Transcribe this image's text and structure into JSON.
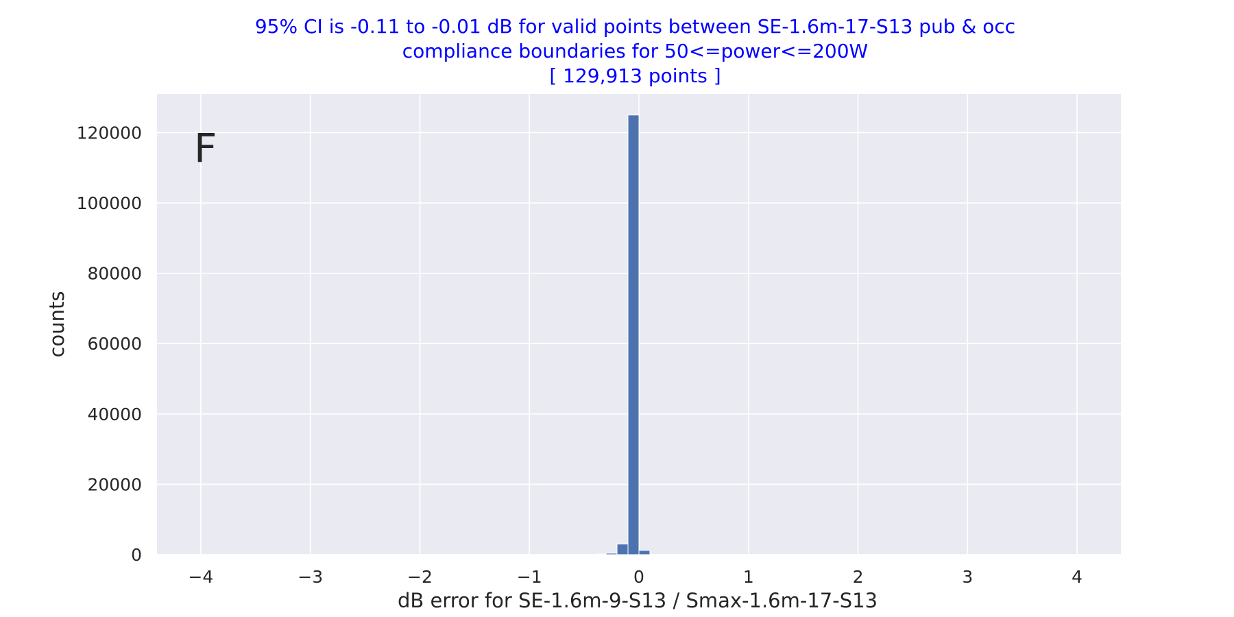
{
  "chart_data": {
    "type": "bar",
    "title_lines": [
      "95% CI is -0.11 to -0.01 dB for valid points between SE-1.6m-17-S13 pub & occ",
      "compliance boundaries for 50<=power<=200W",
      "[ 129,913 points ]"
    ],
    "panel_label": "F",
    "xlabel": "dB error for SE-1.6m-9-S13 / Smax-1.6m-17-S13",
    "ylabel": "counts",
    "xlim": [
      -4.4,
      4.4
    ],
    "ylim": [
      0,
      131000
    ],
    "xticks": [
      -4,
      -3,
      -2,
      -1,
      0,
      1,
      2,
      3,
      4
    ],
    "xtick_labels": [
      "−4",
      "−3",
      "−2",
      "−1",
      "0",
      "1",
      "2",
      "3",
      "4"
    ],
    "yticks": [
      0,
      20000,
      40000,
      60000,
      80000,
      100000,
      120000
    ],
    "ytick_labels": [
      "0",
      "20000",
      "40000",
      "60000",
      "80000",
      "100000",
      "120000"
    ],
    "grid": true,
    "bar_color": "#4c72b0",
    "background_color": "#eaeaf2",
    "title_color": "#0000ff",
    "bins": [
      {
        "x0": -0.4,
        "x1": -0.3,
        "count": 150
      },
      {
        "x0": -0.3,
        "x1": -0.2,
        "count": 400
      },
      {
        "x0": -0.2,
        "x1": -0.1,
        "count": 3000
      },
      {
        "x0": -0.1,
        "x1": 0.0,
        "count": 125000
      },
      {
        "x0": 0.0,
        "x1": 0.1,
        "count": 1200
      }
    ]
  }
}
